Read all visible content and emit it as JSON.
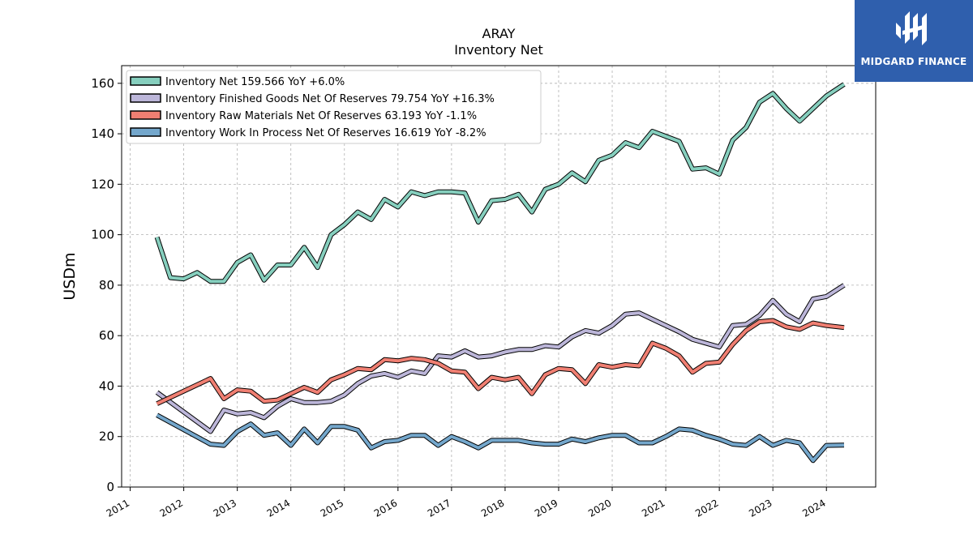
{
  "chart_data": {
    "type": "line",
    "title": "ARAY",
    "subtitle": "Inventory Net",
    "ylabel": "USDm",
    "xlabel": "",
    "ylim": [
      0,
      167
    ],
    "xlim": [
      2010.84,
      2024.92
    ],
    "yticks": [
      0,
      20,
      40,
      60,
      80,
      100,
      120,
      140,
      160
    ],
    "xticks": [
      "2011",
      "2012",
      "2013",
      "2014",
      "2015",
      "2016",
      "2017",
      "2018",
      "2019",
      "2020",
      "2021",
      "2022",
      "2023",
      "2024"
    ],
    "grid": true,
    "legend_position": "top-left",
    "series": [
      {
        "name": "Inventory Net",
        "legend": "Inventory Net  159.566 YoY +6.0%",
        "color": "#86cfbe",
        "x": [
          2011.5,
          2011.75,
          2012.0,
          2012.25,
          2012.5,
          2012.75,
          2013.0,
          2013.25,
          2013.5,
          2013.75,
          2014.0,
          2014.25,
          2014.5,
          2014.75,
          2015.0,
          2015.25,
          2015.5,
          2015.75,
          2016.0,
          2016.25,
          2016.5,
          2016.75,
          2017.0,
          2017.25,
          2017.5,
          2017.75,
          2018.0,
          2018.25,
          2018.5,
          2018.75,
          2019.0,
          2019.25,
          2019.5,
          2019.75,
          2020.0,
          2020.25,
          2020.5,
          2020.75,
          2021.0,
          2021.25,
          2021.5,
          2021.75,
          2022.0,
          2022.25,
          2022.5,
          2022.75,
          2023.0,
          2023.25,
          2023.5,
          2023.75,
          2024.0,
          2024.33
        ],
        "y": [
          99,
          83,
          82.5,
          85,
          81.5,
          81.5,
          89,
          92,
          82,
          88,
          88,
          95,
          87,
          100,
          104,
          109,
          106,
          114,
          111,
          117,
          115.5,
          117,
          117,
          116.5,
          105,
          113.5,
          114,
          116,
          109,
          118,
          120,
          124.5,
          121,
          129.5,
          131.5,
          136.5,
          134.5,
          141,
          139,
          137,
          126,
          126.5,
          124,
          137.5,
          142.5,
          152.5,
          156,
          150,
          145,
          150,
          155,
          159.6
        ]
      },
      {
        "name": "Inventory Finished Goods Net Of Reserves",
        "legend": "Inventory Finished Goods Net Of Reserves  79.754 YoY +16.3%",
        "color": "#bcb6d9",
        "x": [
          2011.5,
          2012.5,
          2012.75,
          2013.0,
          2013.25,
          2013.5,
          2013.75,
          2014.0,
          2014.25,
          2014.5,
          2014.75,
          2015.0,
          2015.25,
          2015.5,
          2015.75,
          2016.0,
          2016.25,
          2016.5,
          2016.75,
          2017.0,
          2017.25,
          2017.5,
          2017.75,
          2018.0,
          2018.25,
          2018.5,
          2018.75,
          2019.0,
          2019.25,
          2019.5,
          2019.75,
          2020.0,
          2020.25,
          2020.5,
          2020.75,
          2021.0,
          2021.25,
          2021.5,
          2021.75,
          2022.0,
          2022.25,
          2022.5,
          2022.75,
          2023.0,
          2023.25,
          2023.5,
          2023.75,
          2024.0,
          2024.33
        ],
        "y": [
          37.5,
          22,
          30.5,
          29,
          29.5,
          27.5,
          32,
          35,
          33.5,
          33.5,
          34,
          36.5,
          41,
          44,
          45,
          43.5,
          46,
          45,
          52,
          51.5,
          54,
          51.5,
          52,
          53.5,
          54.5,
          54.5,
          56,
          55.5,
          59.5,
          62,
          61,
          64,
          68.5,
          69,
          66.5,
          64,
          61.5,
          58.5,
          57,
          55.5,
          64,
          64.5,
          68,
          74,
          68.5,
          65.5,
          74.5,
          75.5,
          80
        ]
      },
      {
        "name": "Inventory Raw Materials Net Of Reserves",
        "legend": "Inventory Raw Materials Net Of Reserves  63.193 YoY -1.1%",
        "color": "#f07f72",
        "x": [
          2011.5,
          2012.5,
          2012.75,
          2013.0,
          2013.25,
          2013.5,
          2013.75,
          2014.0,
          2014.25,
          2014.5,
          2014.75,
          2015.0,
          2015.25,
          2015.5,
          2015.75,
          2016.0,
          2016.25,
          2016.5,
          2016.75,
          2017.0,
          2017.25,
          2017.5,
          2017.75,
          2018.0,
          2018.25,
          2018.5,
          2018.75,
          2019.0,
          2019.25,
          2019.5,
          2019.75,
          2020.0,
          2020.25,
          2020.5,
          2020.75,
          2021.0,
          2021.25,
          2021.5,
          2021.75,
          2022.0,
          2022.25,
          2022.5,
          2022.75,
          2023.0,
          2023.25,
          2023.5,
          2023.75,
          2024.0,
          2024.33
        ],
        "y": [
          33,
          43,
          35,
          38.5,
          38,
          34,
          34.5,
          37,
          39.5,
          37.5,
          42.5,
          44.5,
          47,
          46.5,
          50.5,
          50,
          51,
          50.5,
          49,
          46,
          45.5,
          39,
          43.5,
          42.5,
          43.5,
          37,
          44.5,
          47,
          46.5,
          41,
          48.5,
          47.5,
          48.5,
          48,
          57,
          55,
          52,
          45.5,
          49,
          49.5,
          56.5,
          62,
          65.5,
          66,
          63.5,
          62.5,
          65,
          64,
          63.2
        ]
      },
      {
        "name": "Inventory Work In Process Net Of Reserves",
        "legend": "Inventory Work In Process Net Of Reserves  16.619 YoY -8.2%",
        "color": "#74a7cc",
        "x": [
          2011.5,
          2012.5,
          2012.75,
          2013.0,
          2013.25,
          2013.5,
          2013.75,
          2014.0,
          2014.25,
          2014.5,
          2014.75,
          2015.0,
          2015.25,
          2015.5,
          2015.75,
          2016.0,
          2016.25,
          2016.5,
          2016.75,
          2017.0,
          2017.25,
          2017.5,
          2017.75,
          2018.0,
          2018.25,
          2018.5,
          2018.75,
          2019.0,
          2019.25,
          2019.5,
          2019.75,
          2020.0,
          2020.25,
          2020.5,
          2020.75,
          2021.0,
          2021.25,
          2021.5,
          2021.75,
          2022.0,
          2022.25,
          2022.5,
          2022.75,
          2023.0,
          2023.25,
          2023.5,
          2023.75,
          2024.0,
          2024.33
        ],
        "y": [
          28.5,
          17,
          16.5,
          22,
          25,
          20.5,
          21.5,
          16.5,
          23,
          17.5,
          24,
          24,
          22.5,
          15.5,
          18,
          18.5,
          20.5,
          20.5,
          16.5,
          20,
          18,
          15.5,
          18.5,
          18.5,
          18.5,
          17.5,
          17,
          17,
          19,
          18,
          19.5,
          20.5,
          20.5,
          17.5,
          17.5,
          20,
          23,
          22.5,
          20.5,
          19,
          17,
          16.5,
          20,
          16.5,
          18.5,
          17.5,
          10.5,
          16.5,
          16.6
        ]
      }
    ]
  },
  "logo": {
    "text": "MIDGARD FINANCE"
  }
}
